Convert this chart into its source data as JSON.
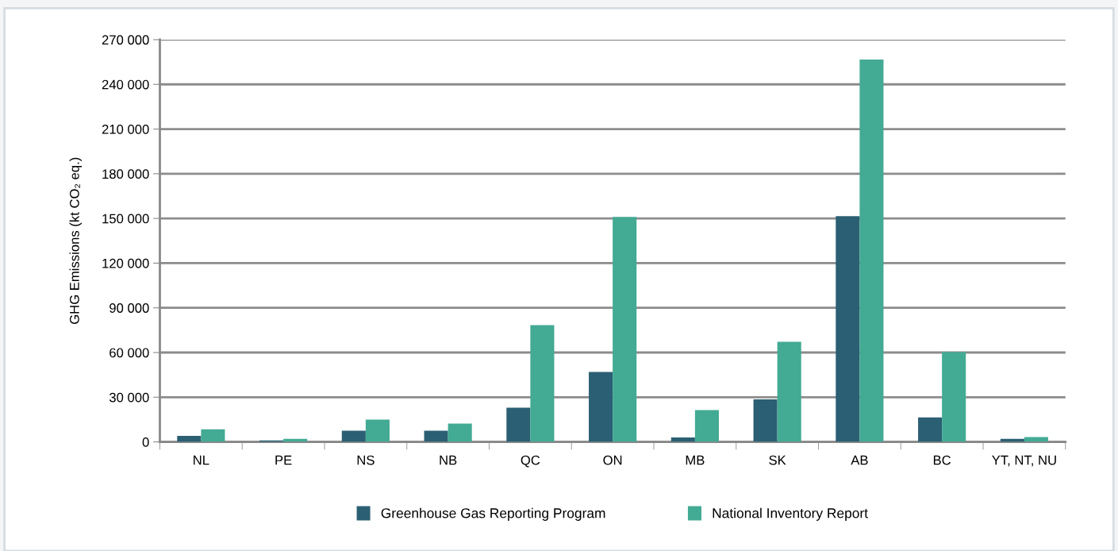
{
  "chart_data": {
    "type": "bar",
    "ylabel": "GHG Emissions (kt CO₂ eq.)",
    "categories": [
      "NL",
      "PE",
      "NS",
      "NB",
      "QC",
      "ON",
      "MB",
      "SK",
      "AB",
      "BC",
      "YT, NT, NU"
    ],
    "series": [
      {
        "name": "Greenhouse Gas Reporting Program",
        "color": "#2b5f73",
        "values": [
          4000,
          1000,
          7500,
          7500,
          23000,
          47000,
          3000,
          28500,
          151500,
          16500,
          2000
        ]
      },
      {
        "name": "National Inventory Report",
        "color": "#43aa94",
        "values": [
          8500,
          2000,
          15000,
          12300,
          78400,
          151000,
          21300,
          67200,
          256700,
          60300,
          3200
        ]
      }
    ],
    "ylim": [
      0,
      270000
    ],
    "yticks": [
      {
        "value": 0,
        "label": "0"
      },
      {
        "value": 30000,
        "label": "30 000"
      },
      {
        "value": 60000,
        "label": "60 000"
      },
      {
        "value": 90000,
        "label": "90 000"
      },
      {
        "value": 120000,
        "label": "120 000"
      },
      {
        "value": 150000,
        "label": "150 000"
      },
      {
        "value": 180000,
        "label": "180 000"
      },
      {
        "value": 210000,
        "label": "210 000"
      },
      {
        "value": 240000,
        "label": "240 000"
      },
      {
        "value": 270000,
        "label": "270 000"
      }
    ],
    "grid": "y",
    "legend": "bottom"
  }
}
